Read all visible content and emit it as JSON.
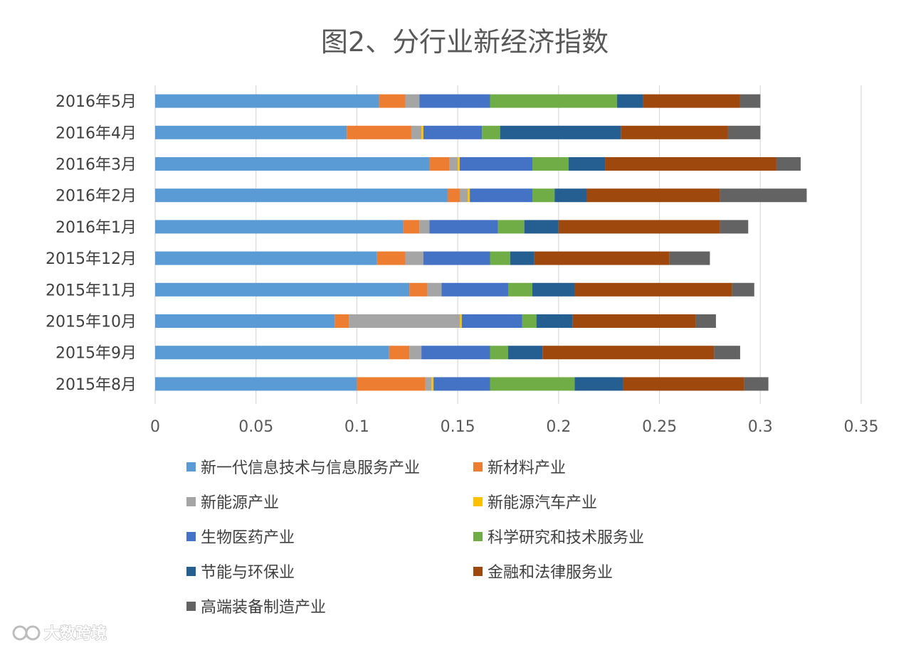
{
  "chart_data": {
    "type": "bar",
    "orientation": "horizontal",
    "stacked": true,
    "title": "图2、分行业新经济指数",
    "categories": [
      "2016年5月",
      "2016年4月",
      "2016年3月",
      "2016年2月",
      "2016年1月",
      "2015年12月",
      "2015年11月",
      "2015年10月",
      "2015年9月",
      "2015年8月"
    ],
    "xlim": [
      0,
      0.35
    ],
    "xticks": [
      "0",
      "0.05",
      "0.1",
      "0.15",
      "0.2",
      "0.25",
      "0.3",
      "0.35"
    ],
    "grid": true,
    "legend_position": "bottom",
    "series": [
      {
        "name": "新一代信息技术与信息服务产业",
        "color": "#5b9bd5",
        "values": [
          0.111,
          0.095,
          0.136,
          0.145,
          0.123,
          0.11,
          0.126,
          0.089,
          0.116,
          0.1
        ]
      },
      {
        "name": "新材料产业",
        "color": "#ed7d31",
        "values": [
          0.013,
          0.032,
          0.01,
          0.006,
          0.008,
          0.014,
          0.009,
          0.007,
          0.01,
          0.034
        ]
      },
      {
        "name": "新能源产业",
        "color": "#a5a5a5",
        "values": [
          0.007,
          0.005,
          0.004,
          0.004,
          0.005,
          0.009,
          0.007,
          0.055,
          0.006,
          0.003
        ]
      },
      {
        "name": "新能源汽车产业",
        "color": "#ffc000",
        "values": [
          0.0,
          0.001,
          0.001,
          0.001,
          0.0,
          0.0,
          0.0,
          0.001,
          0.0,
          0.001
        ]
      },
      {
        "name": "生物医药产业",
        "color": "#4472c4",
        "values": [
          0.035,
          0.029,
          0.036,
          0.031,
          0.034,
          0.033,
          0.033,
          0.03,
          0.034,
          0.028
        ]
      },
      {
        "name": "科学研究和技术服务业",
        "color": "#70ad47",
        "values": [
          0.063,
          0.009,
          0.018,
          0.011,
          0.013,
          0.01,
          0.012,
          0.007,
          0.009,
          0.042
        ]
      },
      {
        "name": "节能与环保业",
        "color": "#255e91",
        "values": [
          0.013,
          0.06,
          0.018,
          0.016,
          0.017,
          0.012,
          0.021,
          0.018,
          0.017,
          0.024
        ]
      },
      {
        "name": "金融和法律服务业",
        "color": "#9e480e",
        "values": [
          0.048,
          0.053,
          0.085,
          0.066,
          0.08,
          0.067,
          0.078,
          0.061,
          0.085,
          0.06
        ]
      },
      {
        "name": "高端装备制造产业",
        "color": "#636363",
        "values": [
          0.01,
          0.016,
          0.012,
          0.043,
          0.014,
          0.02,
          0.011,
          0.01,
          0.013,
          0.012
        ]
      }
    ]
  },
  "watermark": {
    "text": "大数跨境"
  }
}
